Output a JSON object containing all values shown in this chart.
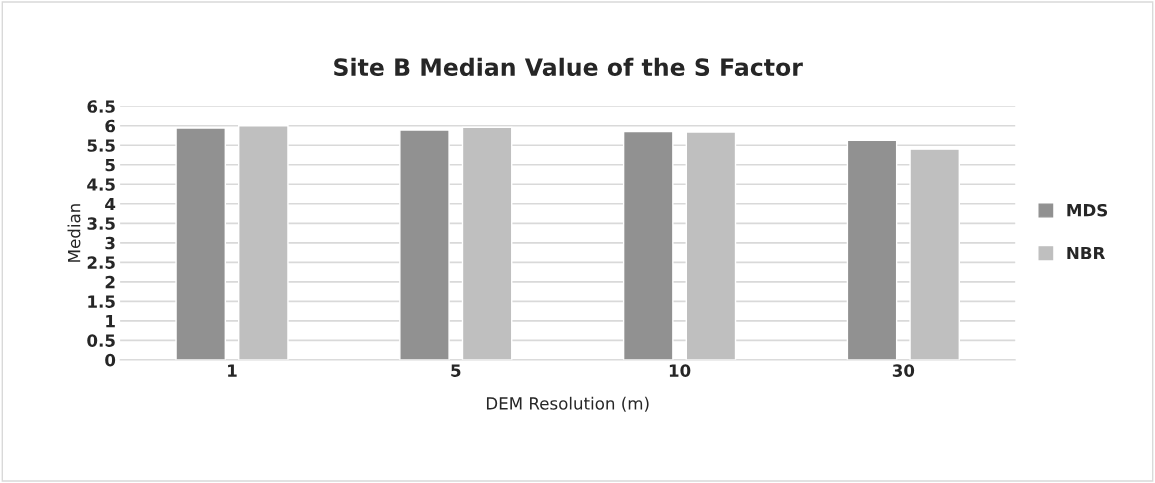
{
  "chart_data": {
    "type": "bar",
    "title": "Site B Median Value of the S Factor",
    "xlabel": "DEM Resolution (m)",
    "ylabel": "Median",
    "categories": [
      "1",
      "5",
      "10",
      "30"
    ],
    "series": [
      {
        "name": "MDS",
        "color": "#919191",
        "values": [
          5.94,
          5.89,
          5.85,
          5.63
        ]
      },
      {
        "name": "NBR",
        "color": "#bfbfbf",
        "values": [
          6.0,
          5.96,
          5.84,
          5.4
        ]
      }
    ],
    "ylim": [
      0,
      6.5
    ],
    "yticks": [
      0,
      0.5,
      1,
      1.5,
      2,
      2.5,
      3,
      3.5,
      4,
      4.5,
      5,
      5.5,
      6,
      6.5
    ],
    "grid": "y",
    "legend": "right"
  }
}
